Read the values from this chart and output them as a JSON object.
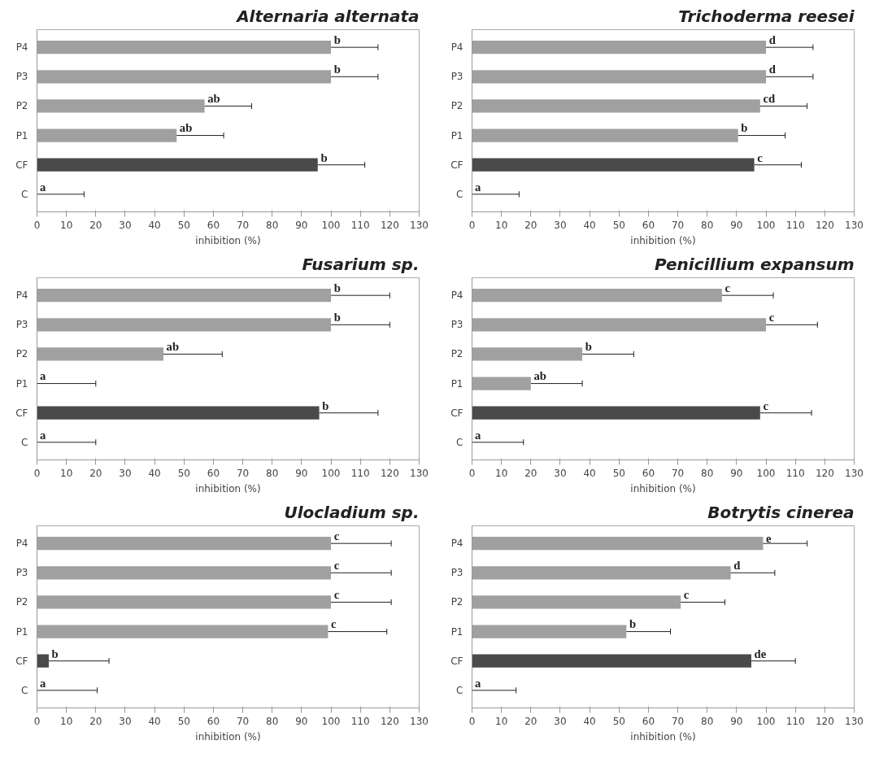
{
  "chart_data": [
    {
      "type": "bar",
      "orientation": "horizontal",
      "title": "Alternaria alternata",
      "xlabel": "inhibition (%)",
      "categories": [
        "P4",
        "P3",
        "P2",
        "P1",
        "CF",
        "C"
      ],
      "values": [
        100,
        100,
        57,
        47.5,
        95.5,
        0
      ],
      "errors": [
        [
          100,
          116
        ],
        [
          100,
          116
        ],
        [
          57,
          73
        ],
        [
          47.5,
          63.5
        ],
        [
          95.5,
          111.5
        ],
        [
          0,
          16
        ]
      ],
      "value_labels": [
        "b",
        "b",
        "ab",
        "ab",
        "b",
        "a"
      ],
      "colors": [
        "#a0a0a0",
        "#a0a0a0",
        "#a0a0a0",
        "#a0a0a0",
        "#4a4a4d",
        "#a0a0a0"
      ],
      "xlim": [
        0,
        130
      ],
      "xticks": [
        0,
        10,
        20,
        30,
        40,
        50,
        60,
        70,
        80,
        90,
        100,
        110,
        120,
        130
      ],
      "grid": false
    },
    {
      "type": "bar",
      "orientation": "horizontal",
      "title": "Trichoderma reesei",
      "xlabel": "inhibition (%)",
      "categories": [
        "P4",
        "P3",
        "P2",
        "P1",
        "CF",
        "C"
      ],
      "values": [
        100,
        100,
        98,
        90.5,
        96,
        0
      ],
      "errors": [
        [
          100,
          116
        ],
        [
          100,
          116
        ],
        [
          98,
          114
        ],
        [
          90.5,
          106.5
        ],
        [
          96,
          112
        ],
        [
          0,
          16
        ]
      ],
      "value_labels": [
        "d",
        "d",
        "cd",
        "b",
        "c",
        "a"
      ],
      "colors": [
        "#a0a0a0",
        "#a0a0a0",
        "#a0a0a0",
        "#a0a0a0",
        "#4a4a4d",
        "#a0a0a0"
      ],
      "xlim": [
        0,
        130
      ],
      "xticks": [
        0,
        10,
        20,
        30,
        40,
        50,
        60,
        70,
        80,
        90,
        100,
        110,
        120,
        130
      ],
      "grid": false
    },
    {
      "type": "bar",
      "orientation": "horizontal",
      "title": "Fusarium sp.",
      "xlabel": "inhibition (%)",
      "categories": [
        "P4",
        "P3",
        "P2",
        "P1",
        "CF",
        "C"
      ],
      "values": [
        100,
        100,
        43,
        0,
        96,
        0
      ],
      "errors": [
        [
          100,
          120
        ],
        [
          100,
          120
        ],
        [
          43,
          63
        ],
        [
          0,
          20
        ],
        [
          96,
          116
        ],
        [
          0,
          20
        ]
      ],
      "value_labels": [
        "b",
        "b",
        "ab",
        "a",
        "b",
        "a"
      ],
      "colors": [
        "#a0a0a0",
        "#a0a0a0",
        "#a0a0a0",
        "#a0a0a0",
        "#4a4a4d",
        "#a0a0a0"
      ],
      "xlim": [
        0,
        130
      ],
      "xticks": [
        0,
        10,
        20,
        30,
        40,
        50,
        60,
        70,
        80,
        90,
        100,
        110,
        120,
        130
      ],
      "grid": false
    },
    {
      "type": "bar",
      "orientation": "horizontal",
      "title": "Penicillium expansum",
      "xlabel": "inhibition (%)",
      "categories": [
        "P4",
        "P3",
        "P2",
        "P1",
        "CF",
        "C"
      ],
      "values": [
        85,
        100,
        37.5,
        20,
        98,
        0
      ],
      "errors": [
        [
          85,
          102.5
        ],
        [
          100,
          117.5
        ],
        [
          37.5,
          55
        ],
        [
          20,
          37.5
        ],
        [
          98,
          115.5
        ],
        [
          0,
          17.5
        ]
      ],
      "value_labels": [
        "c",
        "c",
        "b",
        "ab",
        "c",
        "a"
      ],
      "colors": [
        "#a0a0a0",
        "#a0a0a0",
        "#a0a0a0",
        "#a0a0a0",
        "#4a4a4d",
        "#a0a0a0"
      ],
      "xlim": [
        0,
        130
      ],
      "xticks": [
        0,
        10,
        20,
        30,
        40,
        50,
        60,
        70,
        80,
        90,
        100,
        110,
        120,
        130
      ],
      "grid": false
    },
    {
      "type": "bar",
      "orientation": "horizontal",
      "title": "Ulocladium sp.",
      "xlabel": "inhibition (%)",
      "categories": [
        "P4",
        "P3",
        "P2",
        "P1",
        "CF",
        "C"
      ],
      "values": [
        100,
        100,
        100,
        99,
        4,
        0
      ],
      "errors": [
        [
          100,
          120.5
        ],
        [
          100,
          120.5
        ],
        [
          100,
          120.5
        ],
        [
          99,
          119
        ],
        [
          4,
          24.5
        ],
        [
          0,
          20.5
        ]
      ],
      "value_labels": [
        "c",
        "c",
        "c",
        "c",
        "b",
        "a"
      ],
      "colors": [
        "#a0a0a0",
        "#a0a0a0",
        "#a0a0a0",
        "#a0a0a0",
        "#4a4a4d",
        "#a0a0a0"
      ],
      "xlim": [
        0,
        130
      ],
      "xticks": [
        0,
        10,
        20,
        30,
        40,
        50,
        60,
        70,
        80,
        90,
        100,
        110,
        120,
        130
      ],
      "grid": false
    },
    {
      "type": "bar",
      "orientation": "horizontal",
      "title": "Botrytis cinerea",
      "xlabel": "inhibition (%)",
      "categories": [
        "P4",
        "P3",
        "P2",
        "P1",
        "CF",
        "C"
      ],
      "values": [
        99,
        88,
        71,
        52.5,
        95,
        0
      ],
      "errors": [
        [
          99,
          114
        ],
        [
          88,
          103
        ],
        [
          71,
          86
        ],
        [
          52.5,
          67.5
        ],
        [
          95,
          110
        ],
        [
          0,
          15
        ]
      ],
      "value_labels": [
        "e",
        "d",
        "c",
        "b",
        "de",
        "a"
      ],
      "colors": [
        "#a0a0a0",
        "#a0a0a0",
        "#a0a0a0",
        "#a0a0a0",
        "#4a4a4d",
        "#a0a0a0"
      ],
      "xlim": [
        0,
        130
      ],
      "xticks": [
        0,
        10,
        20,
        30,
        40,
        50,
        60,
        70,
        80,
        90,
        100,
        110,
        120,
        130
      ],
      "grid": false
    }
  ]
}
